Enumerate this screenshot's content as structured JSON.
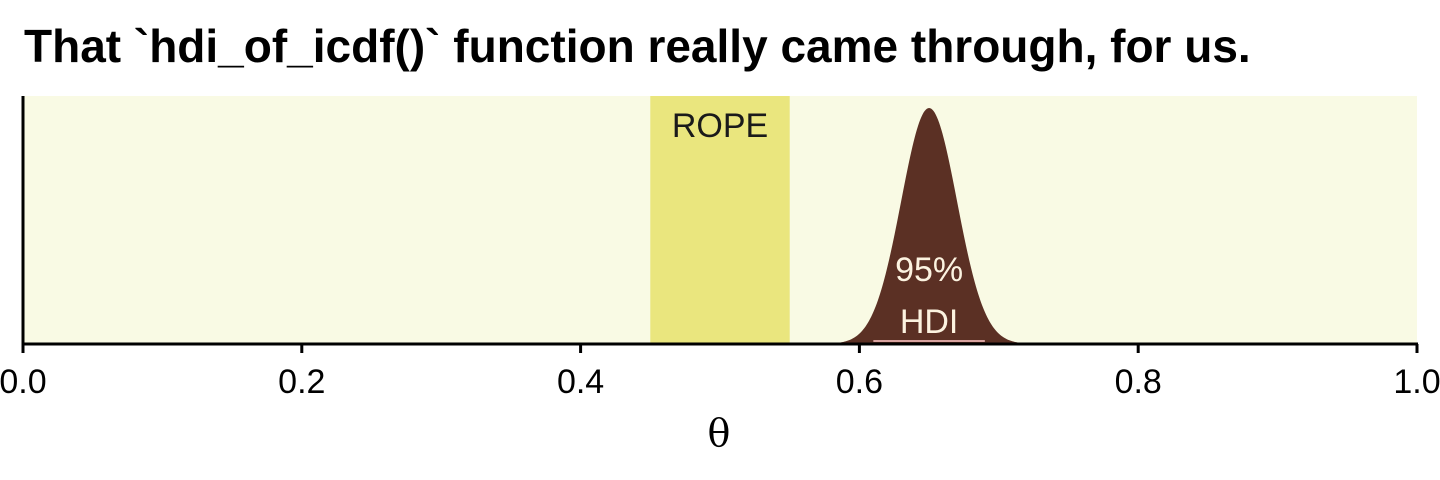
{
  "chart_data": {
    "type": "area",
    "title": "That `hdi_of_icdf()` function really came through, for us.",
    "xlabel": "θ",
    "ylabel": "",
    "xlim": [
      0,
      1
    ],
    "x_ticks": [
      0.0,
      0.2,
      0.4,
      0.6,
      0.8,
      1.0
    ],
    "x_tick_labels": [
      "0.0",
      "0.2",
      "0.4",
      "0.6",
      "0.8",
      "1.0"
    ],
    "grid": false,
    "distribution": {
      "mode": 0.65,
      "sd": 0.02,
      "color": "#5B3024"
    },
    "rope": {
      "label": "ROPE",
      "lower": 0.45,
      "upper": 0.55,
      "color": "#EAE67E"
    },
    "hdi": {
      "label_line1": "95%",
      "label_line2": "HDI",
      "lower": 0.61,
      "upper": 0.69,
      "color": "#D9A3A0"
    },
    "colors": {
      "panel_background": "#F9FAE4",
      "axis": "#000000"
    }
  }
}
